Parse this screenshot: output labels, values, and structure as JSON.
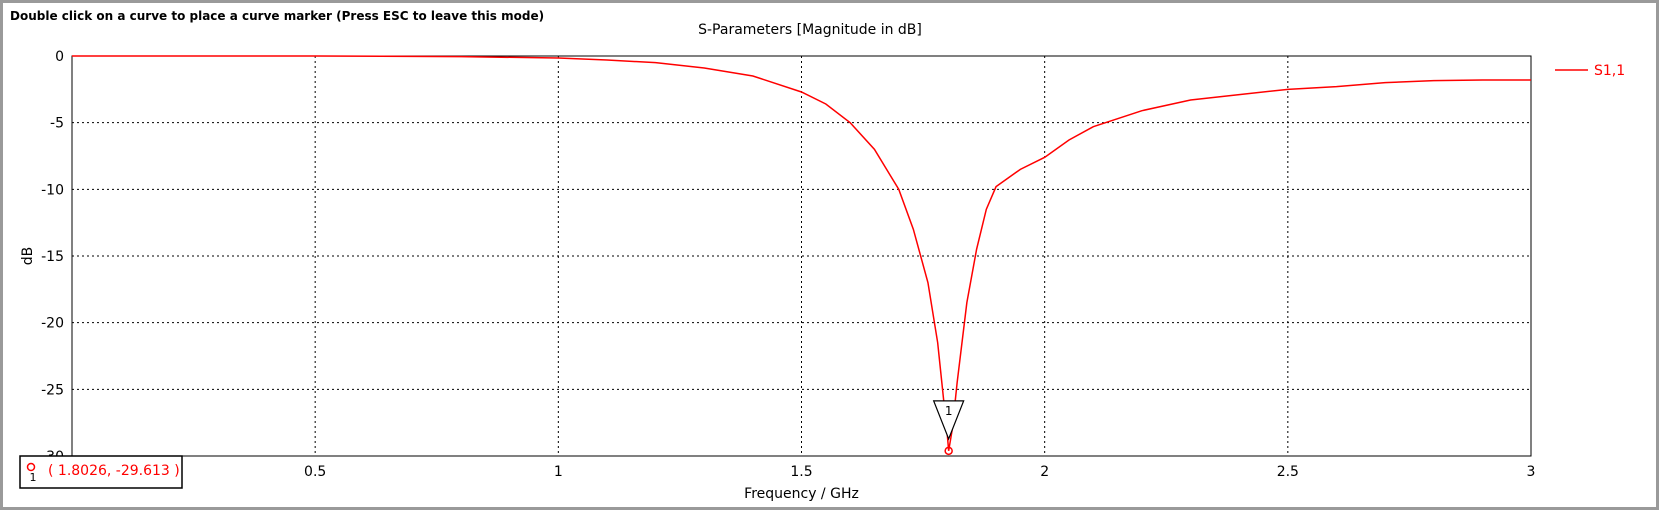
{
  "hint": "Double click on a curve to place a curve marker (Press ESC to leave this mode)",
  "colors": {
    "curve": "#ff0000",
    "grid": "#000000",
    "axis_text": "#000000"
  },
  "chart_data": {
    "type": "line",
    "title": "S-Parameters [Magnitude in dB]",
    "xlabel": "Frequency / GHz",
    "ylabel": "dB",
    "xlim": [
      0,
      3
    ],
    "ylim": [
      -30,
      0
    ],
    "x_ticks": [
      0.5,
      1,
      1.5,
      2,
      2.5,
      3
    ],
    "y_ticks": [
      0,
      -5,
      -10,
      -15,
      -20,
      -25,
      -30
    ],
    "x_tick_labels": [
      "0.5",
      "1",
      "1.5",
      "2",
      "2.5",
      "3"
    ],
    "y_tick_labels": [
      "0",
      "-5",
      "-10",
      "-15",
      "-20",
      "-25",
      "-30"
    ],
    "grid": true,
    "legend_position": "top-right",
    "series": [
      {
        "name": "S1,1",
        "x": [
          0,
          0.5,
          0.8,
          1.0,
          1.1,
          1.2,
          1.3,
          1.4,
          1.5,
          1.55,
          1.6,
          1.65,
          1.7,
          1.73,
          1.76,
          1.78,
          1.79,
          1.8,
          1.8026,
          1.81,
          1.82,
          1.84,
          1.86,
          1.88,
          1.9,
          1.95,
          2.0,
          2.05,
          2.1,
          2.2,
          2.3,
          2.4,
          2.5,
          2.6,
          2.7,
          2.8,
          2.9,
          3.0
        ],
        "y": [
          0,
          0,
          -0.05,
          -0.15,
          -0.3,
          -0.5,
          -0.9,
          -1.5,
          -2.7,
          -3.6,
          -5.0,
          -7.0,
          -10.0,
          -13.0,
          -17.0,
          -21.5,
          -25.0,
          -28.5,
          -29.613,
          -28.0,
          -24.5,
          -18.5,
          -14.5,
          -11.5,
          -9.8,
          -8.5,
          -7.6,
          -6.3,
          -5.3,
          -4.1,
          -3.3,
          -2.9,
          -2.5,
          -2.3,
          -2.0,
          -1.85,
          -1.8,
          -1.8
        ]
      }
    ],
    "markers": [
      {
        "label": "1",
        "x": 1.8026,
        "y": -29.613,
        "readout": "( 1.8026, -29.613 )"
      }
    ]
  }
}
